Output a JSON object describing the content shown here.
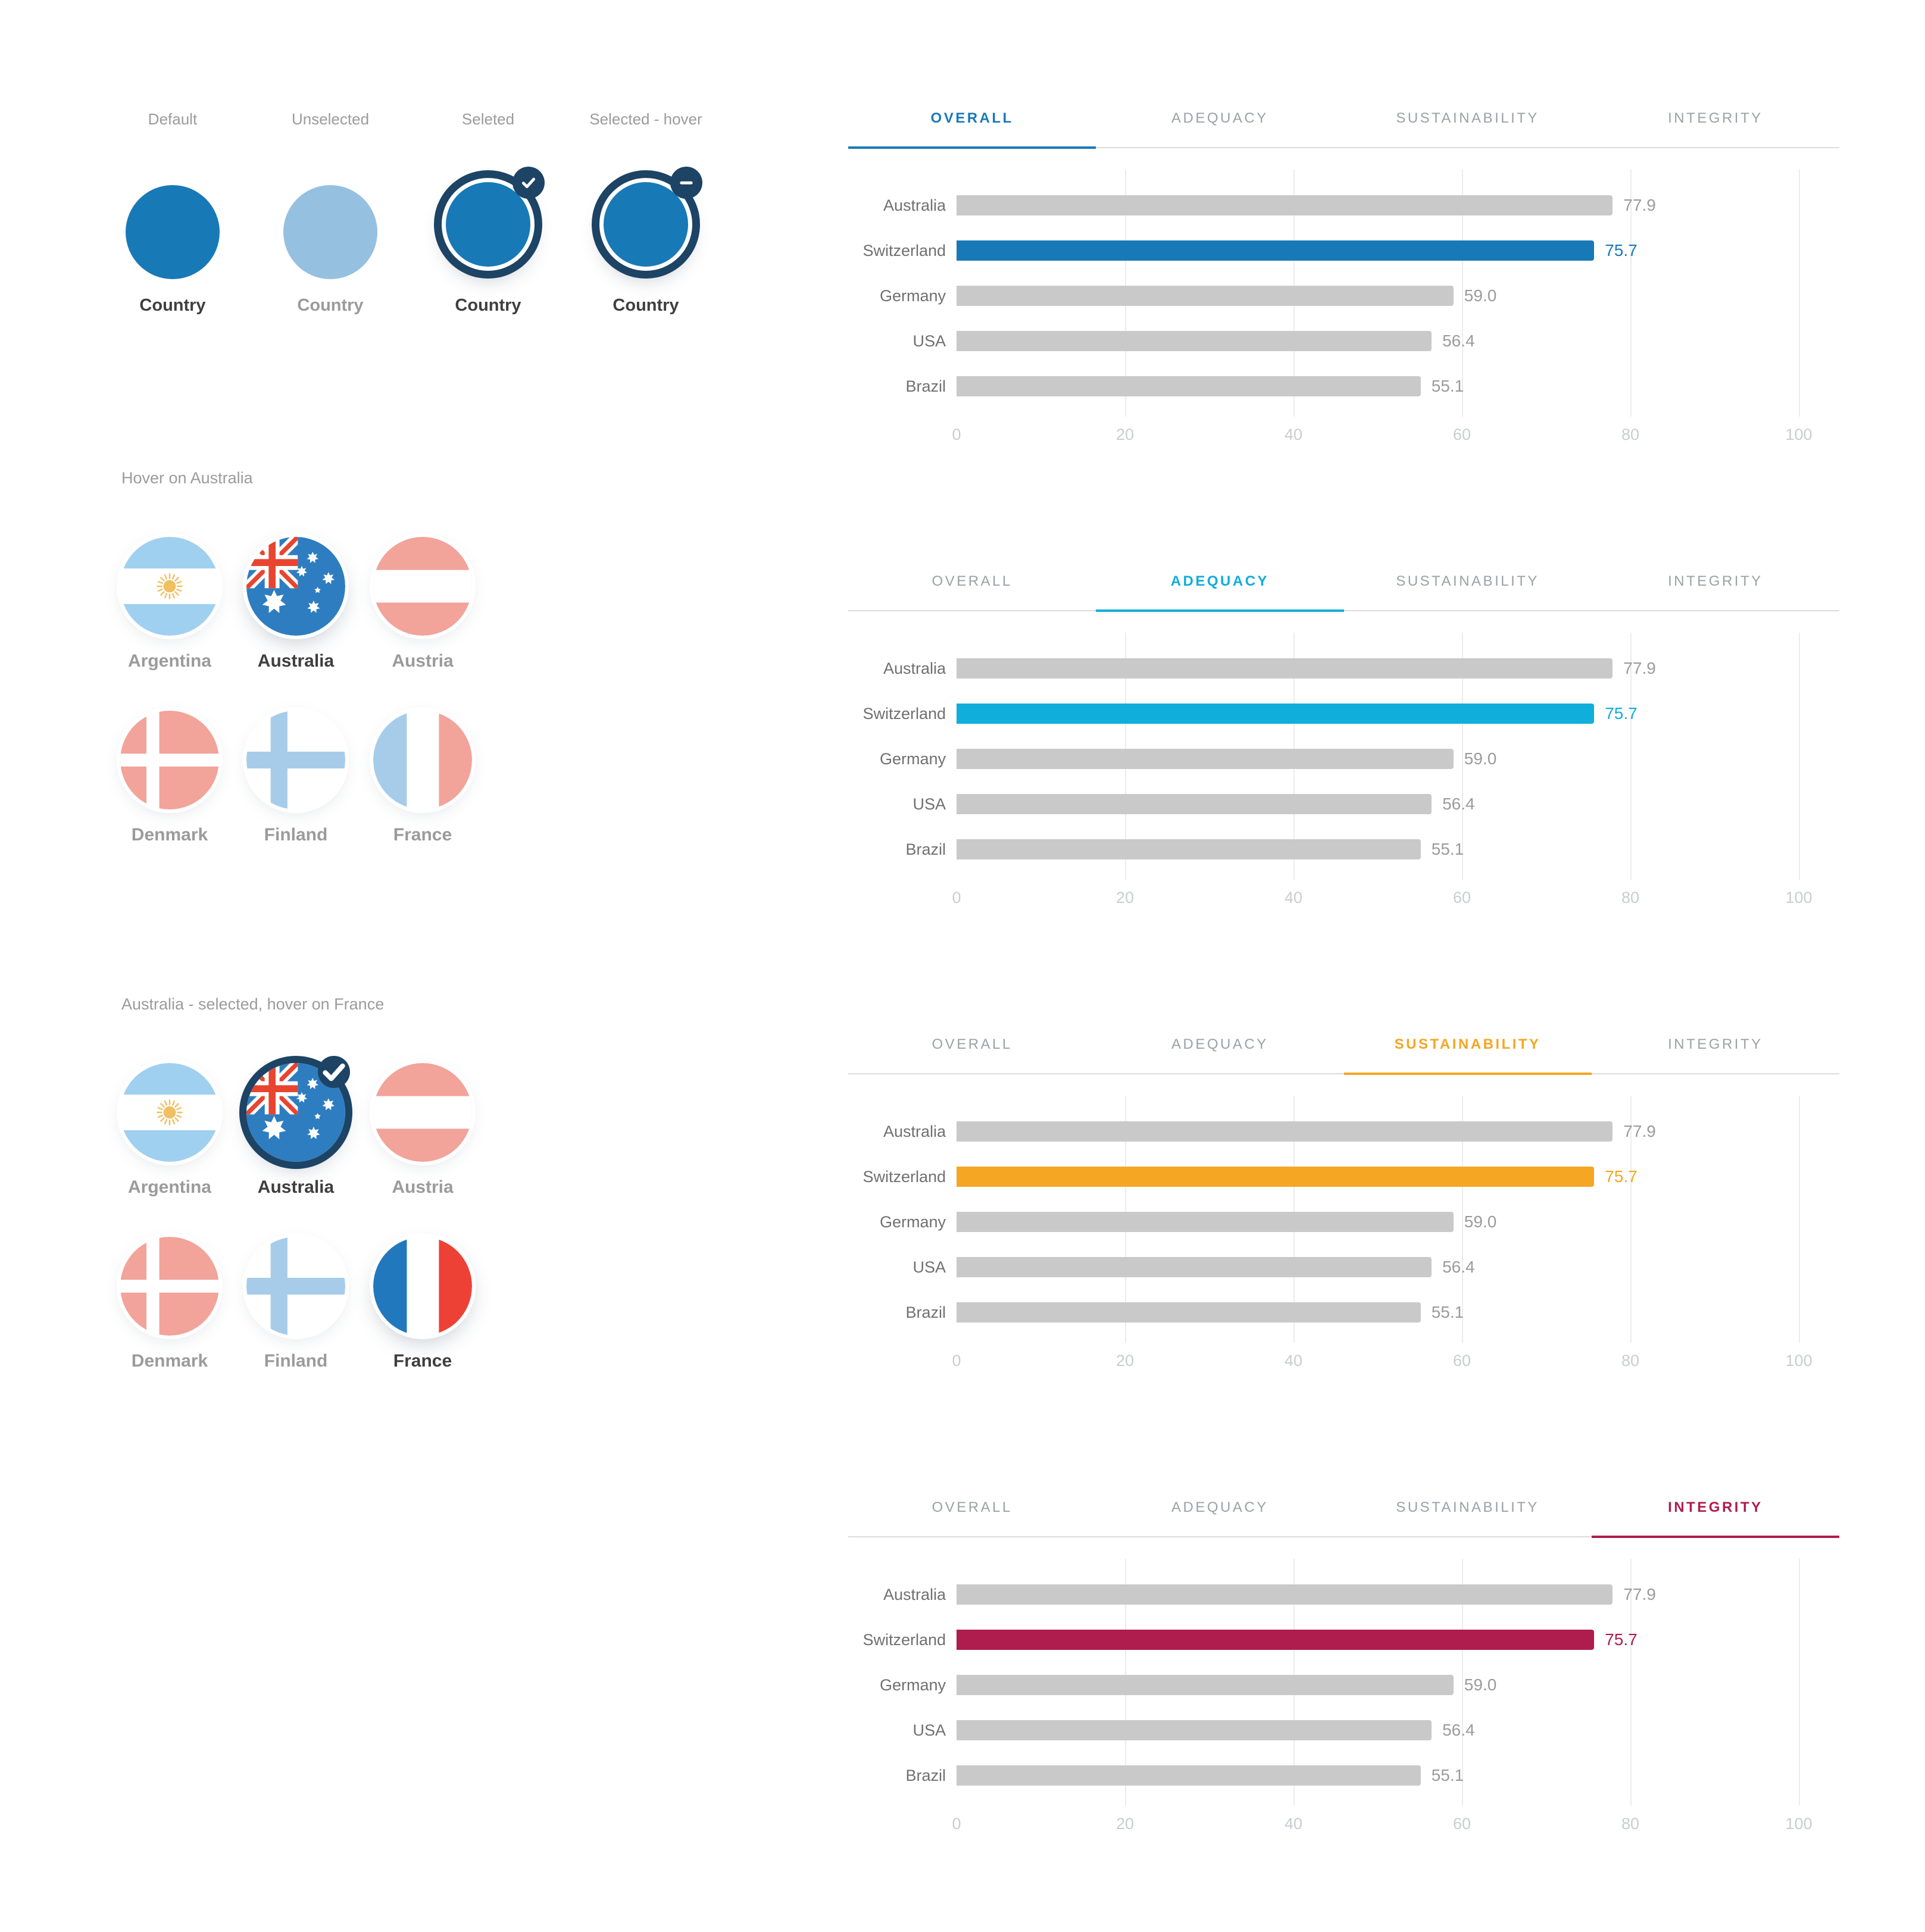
{
  "palette": {
    "blue": "#1879B7",
    "unselected_blue": "#96C0DF",
    "navy": "#1D4365",
    "cyan": "#0FAEDB",
    "orange": "#F5A623",
    "crimson": "#AF1C4E",
    "bar_gray": "#C9C9C9",
    "label_gray": "#9B9B9B",
    "dark_text": "#3F3F3F",
    "chart_label": "#707070",
    "axis_tick": "#C9CDD1",
    "tab_inactive": "#9CA1A7",
    "grid_line": "#ECECEC",
    "muted_salmon": "#F2A39A",
    "muted_blue": "#A6CCEA",
    "argentina_blue": "#9FD0F0",
    "sun_gold": "#EFBF62",
    "australia_blue": "#2E7DC0",
    "australia_red": "#E8442F",
    "france_blue": "#2278BC",
    "france_red": "#EE4136"
  },
  "states_row": {
    "columns": [
      {
        "state_label": "Default",
        "country_label": "Country",
        "variant": "default"
      },
      {
        "state_label": "Unselected",
        "country_label": "Country",
        "variant": "unselected"
      },
      {
        "state_label": "Seleted",
        "country_label": "Country",
        "variant": "selected"
      },
      {
        "state_label": "Selected - hover",
        "country_label": "Country",
        "variant": "selected-hover"
      }
    ]
  },
  "flag_groups": [
    {
      "header": "Hover on Australia",
      "flags": [
        {
          "name": "Argentina",
          "flag": "argentina",
          "state": "muted"
        },
        {
          "name": "Australia",
          "flag": "australia",
          "state": "hover"
        },
        {
          "name": "Austria",
          "flag": "austria",
          "state": "muted"
        },
        {
          "name": "Denmark",
          "flag": "denmark",
          "state": "muted"
        },
        {
          "name": "Finland",
          "flag": "finland",
          "state": "muted"
        },
        {
          "name": "France",
          "flag": "france",
          "state": "muted"
        }
      ]
    },
    {
      "header": "Australia - selected, hover on France",
      "flags": [
        {
          "name": "Argentina",
          "flag": "argentina",
          "state": "muted"
        },
        {
          "name": "Australia",
          "flag": "australia",
          "state": "selected"
        },
        {
          "name": "Austria",
          "flag": "austria",
          "state": "muted"
        },
        {
          "name": "Denmark",
          "flag": "denmark",
          "state": "muted"
        },
        {
          "name": "Finland",
          "flag": "finland",
          "state": "muted"
        },
        {
          "name": "France",
          "flag": "france",
          "state": "hover"
        }
      ]
    }
  ],
  "tabs": [
    "OVERALL",
    "ADEQUACY",
    "SUSTAINABILITY",
    "INTEGRITY"
  ],
  "chart_data": [
    {
      "type": "bar",
      "orientation": "horizontal",
      "active_tab": "OVERALL",
      "accent": "#1879B7",
      "categories": [
        "Australia",
        "Switzerland",
        "Germany",
        "USA",
        "Brazil"
      ],
      "values": [
        77.9,
        75.7,
        59.0,
        56.4,
        55.1
      ],
      "value_labels": [
        "77.9",
        "75.7",
        "59.0",
        "56.4",
        "55.1"
      ],
      "highlight_category": "Switzerland",
      "highlight_index": 1,
      "xticks": [
        0,
        20,
        40,
        60,
        80,
        100
      ],
      "xlim": [
        0,
        100
      ],
      "grid": true,
      "legend_position": "none"
    },
    {
      "type": "bar",
      "orientation": "horizontal",
      "active_tab": "ADEQUACY",
      "accent": "#0FAEDB",
      "categories": [
        "Australia",
        "Switzerland",
        "Germany",
        "USA",
        "Brazil"
      ],
      "values": [
        77.9,
        75.7,
        59.0,
        56.4,
        55.1
      ],
      "value_labels": [
        "77.9",
        "75.7",
        "59.0",
        "56.4",
        "55.1"
      ],
      "highlight_category": "Switzerland",
      "highlight_index": 1,
      "xticks": [
        0,
        20,
        40,
        60,
        80,
        100
      ],
      "xlim": [
        0,
        100
      ],
      "grid": true,
      "legend_position": "none"
    },
    {
      "type": "bar",
      "orientation": "horizontal",
      "active_tab": "SUSTAINABILITY",
      "accent": "#F5A623",
      "categories": [
        "Australia",
        "Switzerland",
        "Germany",
        "USA",
        "Brazil"
      ],
      "values": [
        77.9,
        75.7,
        59.0,
        56.4,
        55.1
      ],
      "value_labels": [
        "77.9",
        "75.7",
        "59.0",
        "56.4",
        "55.1"
      ],
      "highlight_category": "Switzerland",
      "highlight_index": 1,
      "xticks": [
        0,
        20,
        40,
        60,
        80,
        100
      ],
      "xlim": [
        0,
        100
      ],
      "grid": true,
      "legend_position": "none"
    },
    {
      "type": "bar",
      "orientation": "horizontal",
      "active_tab": "INTEGRITY",
      "accent": "#AF1C4E",
      "categories": [
        "Australia",
        "Switzerland",
        "Germany",
        "USA",
        "Brazil"
      ],
      "values": [
        77.9,
        75.7,
        59.0,
        56.4,
        55.1
      ],
      "value_labels": [
        "77.9",
        "75.7",
        "59.0",
        "56.4",
        "55.1"
      ],
      "highlight_category": "Switzerland",
      "highlight_index": 1,
      "xticks": [
        0,
        20,
        40,
        60,
        80,
        100
      ],
      "xlim": [
        0,
        100
      ],
      "grid": true,
      "legend_position": "none"
    }
  ]
}
